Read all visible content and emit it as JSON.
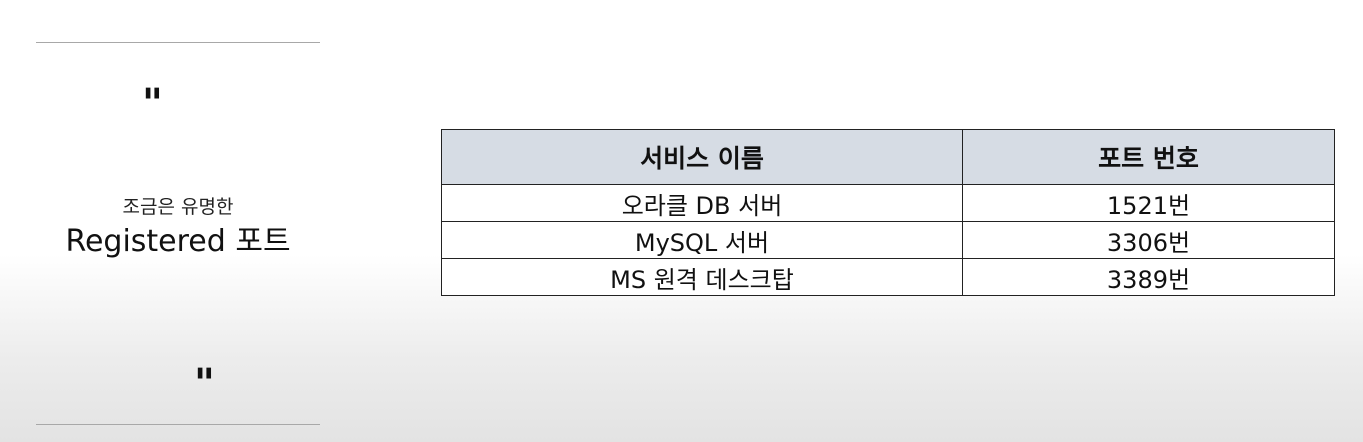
{
  "aside": {
    "quote_open": "\"",
    "quote_close": "\"",
    "subtitle": "조금은 유명한",
    "headline": "Registered 포트"
  },
  "table": {
    "headers": [
      "서비스 이름",
      "포트 번호"
    ],
    "rows": [
      [
        "오라클 DB 서버",
        "1521번"
      ],
      [
        "MySQL 서버",
        "3306번"
      ],
      [
        "MS 원격 데스크탑",
        "3389번"
      ]
    ]
  }
}
